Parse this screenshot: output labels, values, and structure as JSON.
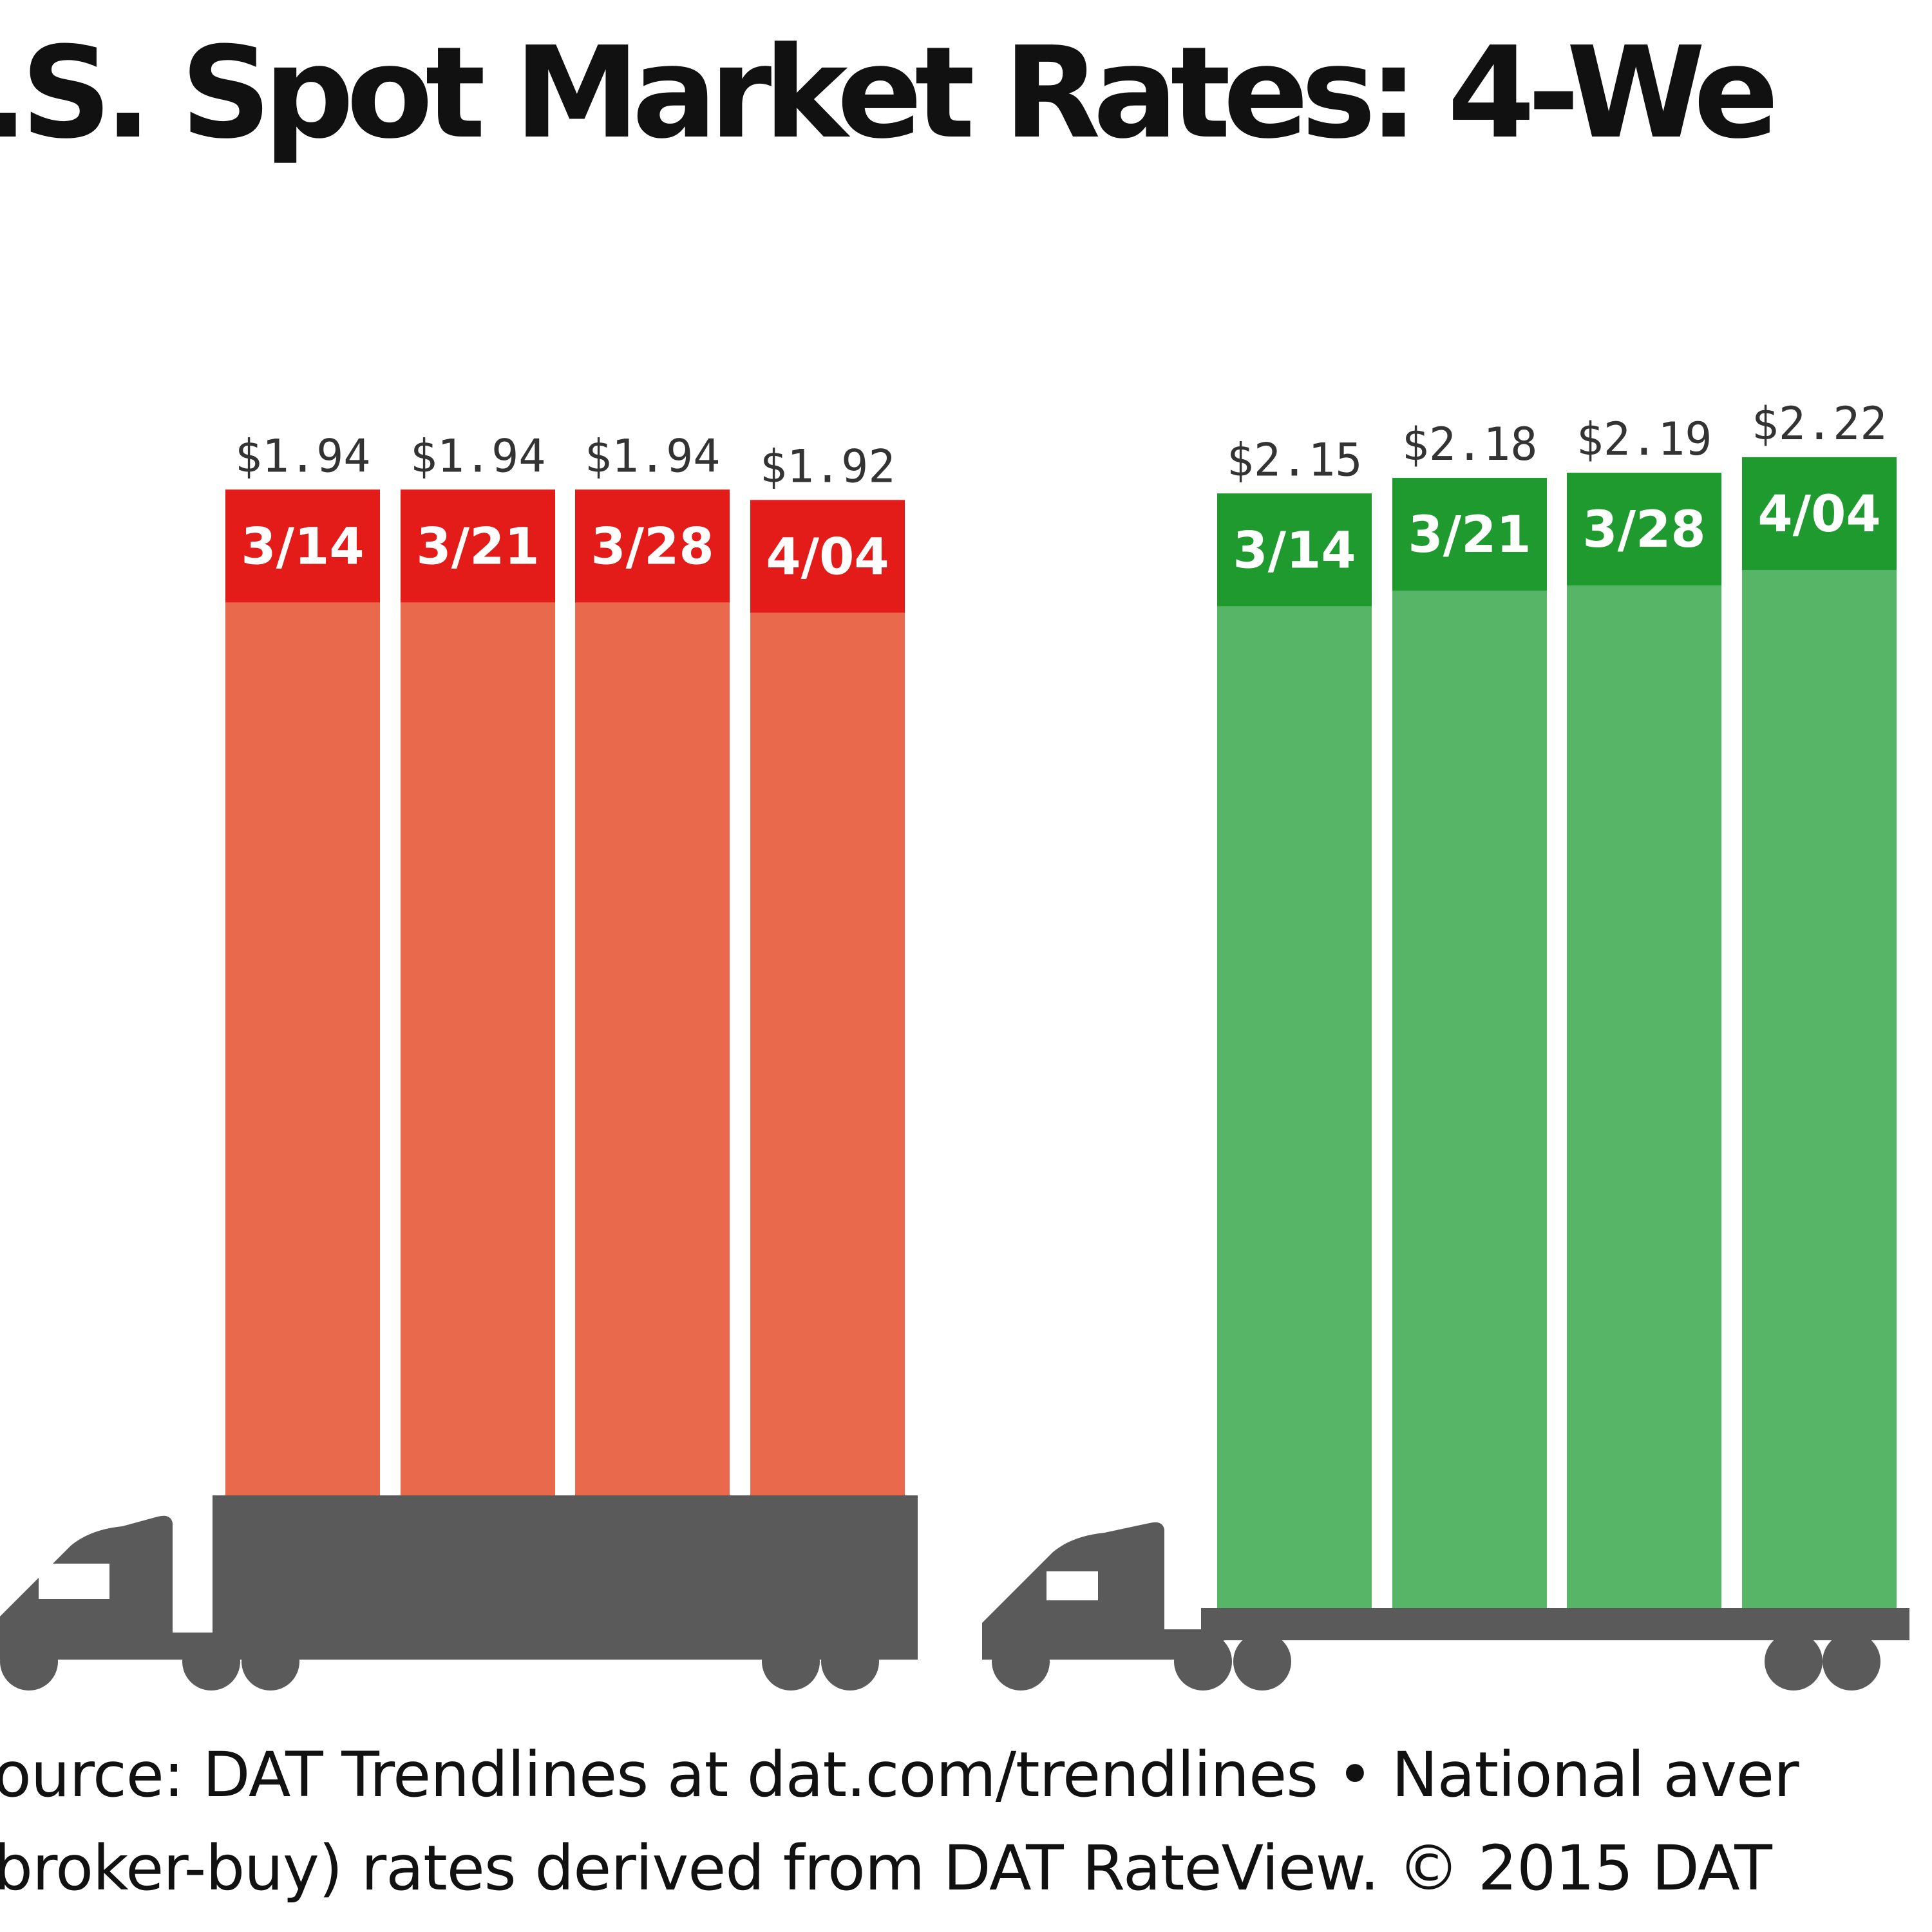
{
  "title": ".S. Spot Market Rates: 4-We",
  "chart_data": [
    {
      "type": "bar",
      "categories": [
        "3/14",
        "3/21",
        "3/28",
        "4/04"
      ],
      "values": [
        1.94,
        1.94,
        1.94,
        1.92
      ],
      "value_labels": [
        "$1.94",
        "$1.94",
        "$1.94",
        "$1.92"
      ],
      "colors": {
        "bar": "#e8694c",
        "date_band": "#e31c19"
      }
    },
    {
      "type": "bar",
      "categories": [
        "3/14",
        "3/21",
        "3/28",
        "4/04"
      ],
      "values": [
        2.15,
        2.18,
        2.19,
        2.22
      ],
      "value_labels": [
        "$2.15",
        "$2.18",
        "$2.19",
        "$2.22"
      ],
      "colors": {
        "bar": "#56b566",
        "date_band": "#1f9a2e"
      }
    }
  ],
  "colors": {
    "truck": "#5a5a5a",
    "value_label": "#333333",
    "date_label": "#ffffff"
  },
  "footer": {
    "line1": "ource: DAT Trendlines at dat.com/trendlines • National aver",
    "line2": "broker-buy) rates derived from DAT RateView. © 2015 DAT"
  }
}
